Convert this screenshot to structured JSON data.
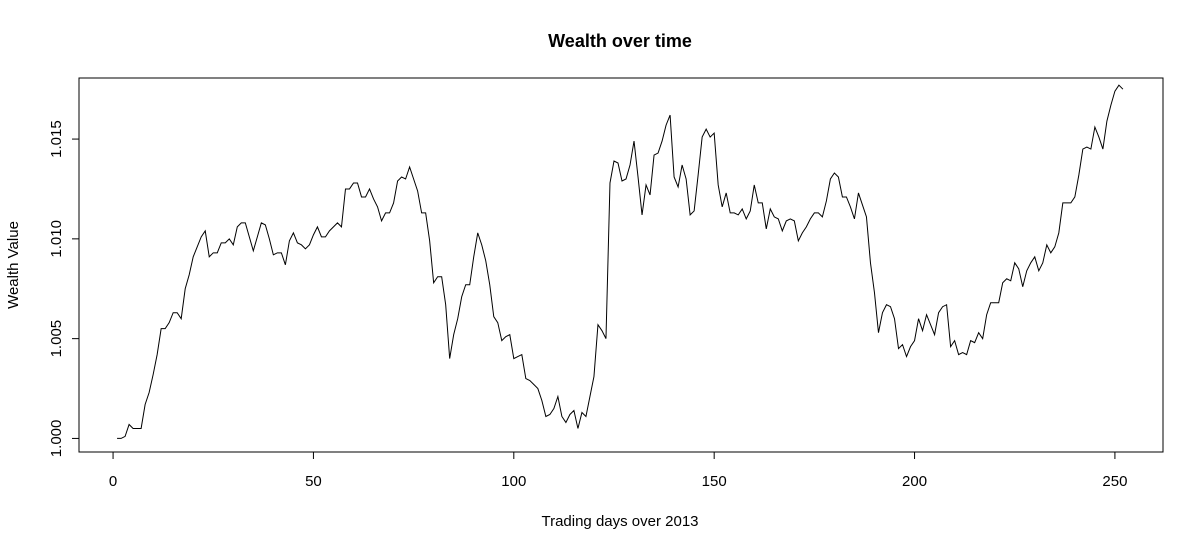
{
  "chart_data": {
    "type": "line",
    "title": "Wealth over time",
    "xlabel": "Trading days over 2013",
    "ylabel": "Wealth Value",
    "xlim": [
      -8.5,
      262
    ],
    "ylim": [
      0.99932,
      1.01806
    ],
    "x_ticks": [
      0,
      50,
      100,
      150,
      200,
      250
    ],
    "x_tick_labels": [
      "0",
      "50",
      "100",
      "150",
      "200",
      "250"
    ],
    "y_ticks": [
      1.0,
      1.005,
      1.01,
      1.015
    ],
    "y_tick_labels": [
      "1.000",
      "1.005",
      "1.010",
      "1.015"
    ],
    "grid": false,
    "legend": "none",
    "line_color": "#000000",
    "series": [
      {
        "x_start": 1,
        "values": [
          1.0,
          1.0,
          1.0001,
          1.0007,
          1.0005,
          1.0005,
          1.0005,
          1.0017,
          1.0023,
          1.0032,
          1.0042,
          1.0055,
          1.0055,
          1.0058,
          1.0063,
          1.0063,
          1.006,
          1.0075,
          1.0082,
          1.0091,
          1.0096,
          1.0101,
          1.0104,
          1.0091,
          1.0093,
          1.0093,
          1.0098,
          1.0098,
          1.01,
          1.0097,
          1.0106,
          1.0108,
          1.0108,
          1.0101,
          1.0094,
          1.0101,
          1.0108,
          1.0107,
          1.01,
          1.0092,
          1.0093,
          1.0093,
          1.0087,
          1.0099,
          1.0103,
          1.0098,
          1.0097,
          1.0095,
          1.0097,
          1.0102,
          1.0106,
          1.0101,
          1.0101,
          1.0104,
          1.0106,
          1.0108,
          1.0106,
          1.0125,
          1.0125,
          1.0128,
          1.0128,
          1.0121,
          1.0121,
          1.0125,
          1.012,
          1.0116,
          1.0109,
          1.0113,
          1.0113,
          1.0118,
          1.0129,
          1.0131,
          1.013,
          1.0136,
          1.013,
          1.0124,
          1.0113,
          1.0113,
          1.0099,
          1.0078,
          1.0081,
          1.0081,
          1.0067,
          1.004,
          1.0052,
          1.006,
          1.0071,
          1.0077,
          1.0077,
          1.0091,
          1.0103,
          1.0097,
          1.0089,
          1.0077,
          1.0061,
          1.0058,
          1.0049,
          1.0051,
          1.0052,
          1.004,
          1.0041,
          1.0042,
          1.003,
          1.0029,
          1.0027,
          1.0025,
          1.0019,
          1.0011,
          1.0012,
          1.0015,
          1.0021,
          1.0011,
          1.0008,
          1.0012,
          1.0014,
          1.0005,
          1.0013,
          1.0011,
          1.0021,
          1.0031,
          1.0057,
          1.0054,
          1.005,
          1.0128,
          1.0139,
          1.0138,
          1.0129,
          1.013,
          1.0137,
          1.0149,
          1.0131,
          1.0112,
          1.0127,
          1.0122,
          1.0142,
          1.0143,
          1.0149,
          1.0157,
          1.0162,
          1.0131,
          1.0126,
          1.0137,
          1.013,
          1.0112,
          1.0114,
          1.0132,
          1.0151,
          1.0155,
          1.0151,
          1.0153,
          1.0127,
          1.0116,
          1.0123,
          1.0113,
          1.0113,
          1.0112,
          1.0115,
          1.011,
          1.0114,
          1.0127,
          1.0118,
          1.0118,
          1.0105,
          1.0115,
          1.0111,
          1.011,
          1.0104,
          1.0109,
          1.011,
          1.0109,
          1.0099,
          1.0103,
          1.0106,
          1.011,
          1.0113,
          1.0113,
          1.0111,
          1.0119,
          1.013,
          1.0133,
          1.0131,
          1.0121,
          1.0121,
          1.0116,
          1.011,
          1.0123,
          1.0117,
          1.0111,
          1.0088,
          1.0073,
          1.0053,
          1.0063,
          1.0067,
          1.0066,
          1.006,
          1.0045,
          1.0047,
          1.0041,
          1.0046,
          1.0049,
          1.006,
          1.0054,
          1.0062,
          1.0057,
          1.0052,
          1.0063,
          1.0066,
          1.0067,
          1.0046,
          1.0049,
          1.0042,
          1.0043,
          1.0042,
          1.0049,
          1.0048,
          1.0053,
          1.005,
          1.0062,
          1.0068,
          1.0068,
          1.0068,
          1.0078,
          1.008,
          1.0079,
          1.0088,
          1.0085,
          1.0076,
          1.0084,
          1.0088,
          1.0091,
          1.0084,
          1.0088,
          1.0097,
          1.0093,
          1.0096,
          1.0103,
          1.0118,
          1.0118,
          1.0118,
          1.0121,
          1.0132,
          1.0145,
          1.0146,
          1.0145,
          1.0156,
          1.0151,
          1.0145,
          1.0159,
          1.0167,
          1.0174,
          1.0177,
          1.0175
        ]
      }
    ]
  }
}
